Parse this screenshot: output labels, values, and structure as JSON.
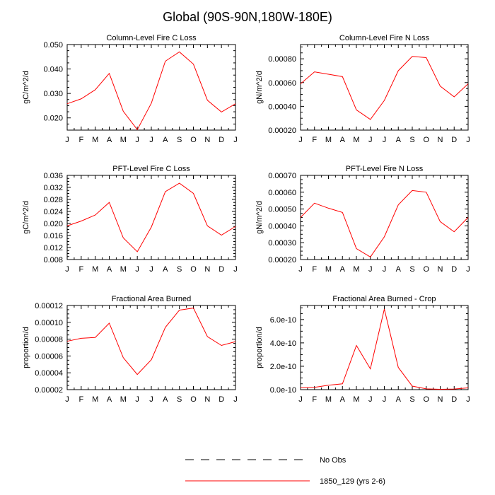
{
  "page_title": "Global (90S-90N,180W-180E)",
  "legend": [
    {
      "label": "No Obs",
      "style": "dashed",
      "color": "#000000"
    },
    {
      "label": "1850_129 (yrs 2-6)",
      "style": "solid",
      "color": "#ff0000"
    }
  ],
  "chart_data": [
    {
      "type": "line",
      "title": "Column-Level Fire C Loss",
      "ylabel": "gC/m^2/d",
      "categories": [
        "J",
        "F",
        "M",
        "A",
        "M",
        "J",
        "J",
        "A",
        "S",
        "O",
        "N",
        "D",
        "J"
      ],
      "ylim": [
        0.015,
        0.05
      ],
      "yticks": [
        0.02,
        0.03,
        0.04,
        0.05
      ],
      "ytick_labels": [
        "0.020",
        "0.030",
        "0.040",
        "0.050"
      ],
      "series": [
        {
          "name": "1850_129 (yrs 2-6)",
          "color": "#ff0000",
          "values": [
            0.0258,
            0.0278,
            0.0315,
            0.0382,
            0.0227,
            0.0152,
            0.026,
            0.0432,
            0.047,
            0.042,
            0.0272,
            0.0224,
            0.0258
          ]
        }
      ]
    },
    {
      "type": "line",
      "title": "Column-Level Fire N Loss",
      "ylabel": "gN/m^2/d",
      "categories": [
        "J",
        "F",
        "M",
        "A",
        "M",
        "J",
        "J",
        "A",
        "S",
        "O",
        "N",
        "D",
        "J"
      ],
      "ylim": [
        0.0002,
        0.00092
      ],
      "yticks": [
        0.0002,
        0.0004,
        0.0006,
        0.0008
      ],
      "ytick_labels": [
        "0.00020",
        "0.00040",
        "0.00060",
        "0.00080"
      ],
      "series": [
        {
          "name": "1850_129 (yrs 2-6)",
          "color": "#ff0000",
          "values": [
            0.00059,
            0.00069,
            0.00067,
            0.00065,
            0.00037,
            0.00029,
            0.00045,
            0.0007,
            0.00082,
            0.00081,
            0.00057,
            0.00048,
            0.00059
          ]
        }
      ]
    },
    {
      "type": "line",
      "title": "PFT-Level Fire C Loss",
      "ylabel": "gC/m^2/d",
      "categories": [
        "J",
        "F",
        "M",
        "A",
        "M",
        "J",
        "J",
        "A",
        "S",
        "O",
        "N",
        "D",
        "J"
      ],
      "ylim": [
        0.008,
        0.036
      ],
      "yticks": [
        0.008,
        0.012,
        0.016,
        0.02,
        0.024,
        0.028,
        0.032,
        0.036
      ],
      "ytick_labels": [
        "0.008",
        "0.012",
        "0.016",
        "0.020",
        "0.024",
        "0.028",
        "0.032",
        "0.036"
      ],
      "series": [
        {
          "name": "1850_129 (yrs 2-6)",
          "color": "#ff0000",
          "values": [
            0.0192,
            0.0208,
            0.0228,
            0.027,
            0.0152,
            0.0106,
            0.0188,
            0.0306,
            0.0334,
            0.03,
            0.0192,
            0.0161,
            0.019
          ]
        }
      ]
    },
    {
      "type": "line",
      "title": "PFT-Level Fire N Loss",
      "ylabel": "gN/m^2/d",
      "categories": [
        "J",
        "F",
        "M",
        "A",
        "M",
        "J",
        "J",
        "A",
        "S",
        "O",
        "N",
        "D",
        "J"
      ],
      "ylim": [
        0.0002,
        0.0007
      ],
      "yticks": [
        0.0002,
        0.0003,
        0.0004,
        0.0005,
        0.0006,
        0.0007
      ],
      "ytick_labels": [
        "0.00020",
        "0.00030",
        "0.00040",
        "0.00050",
        "0.00060",
        "0.00070"
      ],
      "series": [
        {
          "name": "1850_129 (yrs 2-6)",
          "color": "#ff0000",
          "values": [
            0.00045,
            0.000535,
            0.000505,
            0.00048,
            0.000265,
            0.000215,
            0.000335,
            0.000525,
            0.00061,
            0.0006,
            0.000425,
            0.000365,
            0.00045
          ]
        }
      ]
    },
    {
      "type": "line",
      "title": "Fractional Area Burned",
      "ylabel": "proportion/d",
      "categories": [
        "J",
        "F",
        "M",
        "A",
        "M",
        "J",
        "J",
        "A",
        "S",
        "O",
        "N",
        "D",
        "J"
      ],
      "ylim": [
        2e-05,
        0.00012
      ],
      "yticks": [
        2e-05,
        4e-05,
        6e-05,
        8e-05,
        0.0001,
        0.00012
      ],
      "ytick_labels": [
        "0.00002",
        "0.00004",
        "0.00006",
        "0.00008",
        "0.00010",
        "0.00012"
      ],
      "series": [
        {
          "name": "1850_129 (yrs 2-6)",
          "color": "#ff0000",
          "values": [
            7.75e-05,
            8.1e-05,
            8.2e-05,
            9.9e-05,
            5.8e-05,
            3.8e-05,
            5.55e-05,
            9.4e-05,
            0.0001145,
            0.000117,
            8.3e-05,
            7.25e-05,
            7.7e-05
          ]
        }
      ]
    },
    {
      "type": "line",
      "title": "Fractional Area Burned - Crop",
      "ylabel": "proportion/d",
      "categories": [
        "J",
        "F",
        "M",
        "A",
        "M",
        "J",
        "J",
        "A",
        "S",
        "O",
        "N",
        "D",
        "J"
      ],
      "ylim": [
        0,
        7.2e-10
      ],
      "yticks": [
        0,
        2e-10,
        4e-10,
        6e-10
      ],
      "ytick_labels": [
        "0.0e-10",
        "2.0e-10",
        "4.0e-10",
        "6.0e-10"
      ],
      "series": [
        {
          "name": "1850_129 (yrs 2-6)",
          "color": "#ff0000",
          "values": [
            1.5e-11,
            2e-11,
            3.8e-11,
            5e-11,
            3.78e-10,
            1.78e-10,
            6.9e-10,
            1.9e-10,
            3e-11,
            7e-12,
            3e-12,
            5e-12,
            1.5e-11
          ]
        }
      ]
    }
  ]
}
